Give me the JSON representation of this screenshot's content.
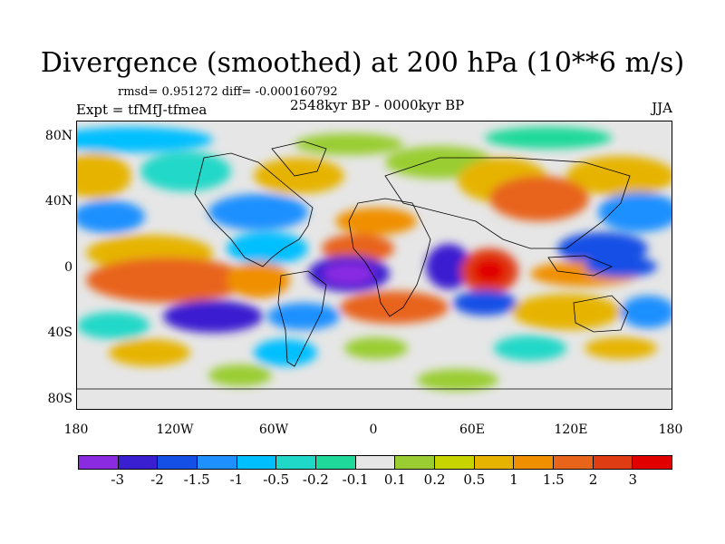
{
  "title": "Divergence (smoothed) at 200 hPa (10**6 m/s)",
  "stats": "rmsd= 0.951272 diff= -0.000160792",
  "experiment": "Expt = tfMfJ-tfmea",
  "period": "2548kyr BP - 0000kyr BP",
  "season": "JJA",
  "latitude_labels": [
    "80N",
    "40N",
    "0",
    "40S",
    "80S"
  ],
  "longitude_labels": [
    "180",
    "120W",
    "60W",
    "0",
    "60E",
    "120E",
    "180"
  ],
  "colorbar": {
    "colors": [
      "#8a2be2",
      "#3a1fd0",
      "#1450e6",
      "#1e90ff",
      "#00bfff",
      "#20d8c8",
      "#1ed99a",
      "#e6e6e6",
      "#9acd32",
      "#c8d400",
      "#e6b400",
      "#f09000",
      "#e8641a",
      "#e03c14",
      "#e00000"
    ],
    "labels": [
      "-3",
      "-2",
      "-1.5",
      "-1",
      "-0.5",
      "-0.2",
      "-0.1",
      "0.1",
      "0.2",
      "0.5",
      "1",
      "1.5",
      "2",
      "3"
    ]
  }
}
